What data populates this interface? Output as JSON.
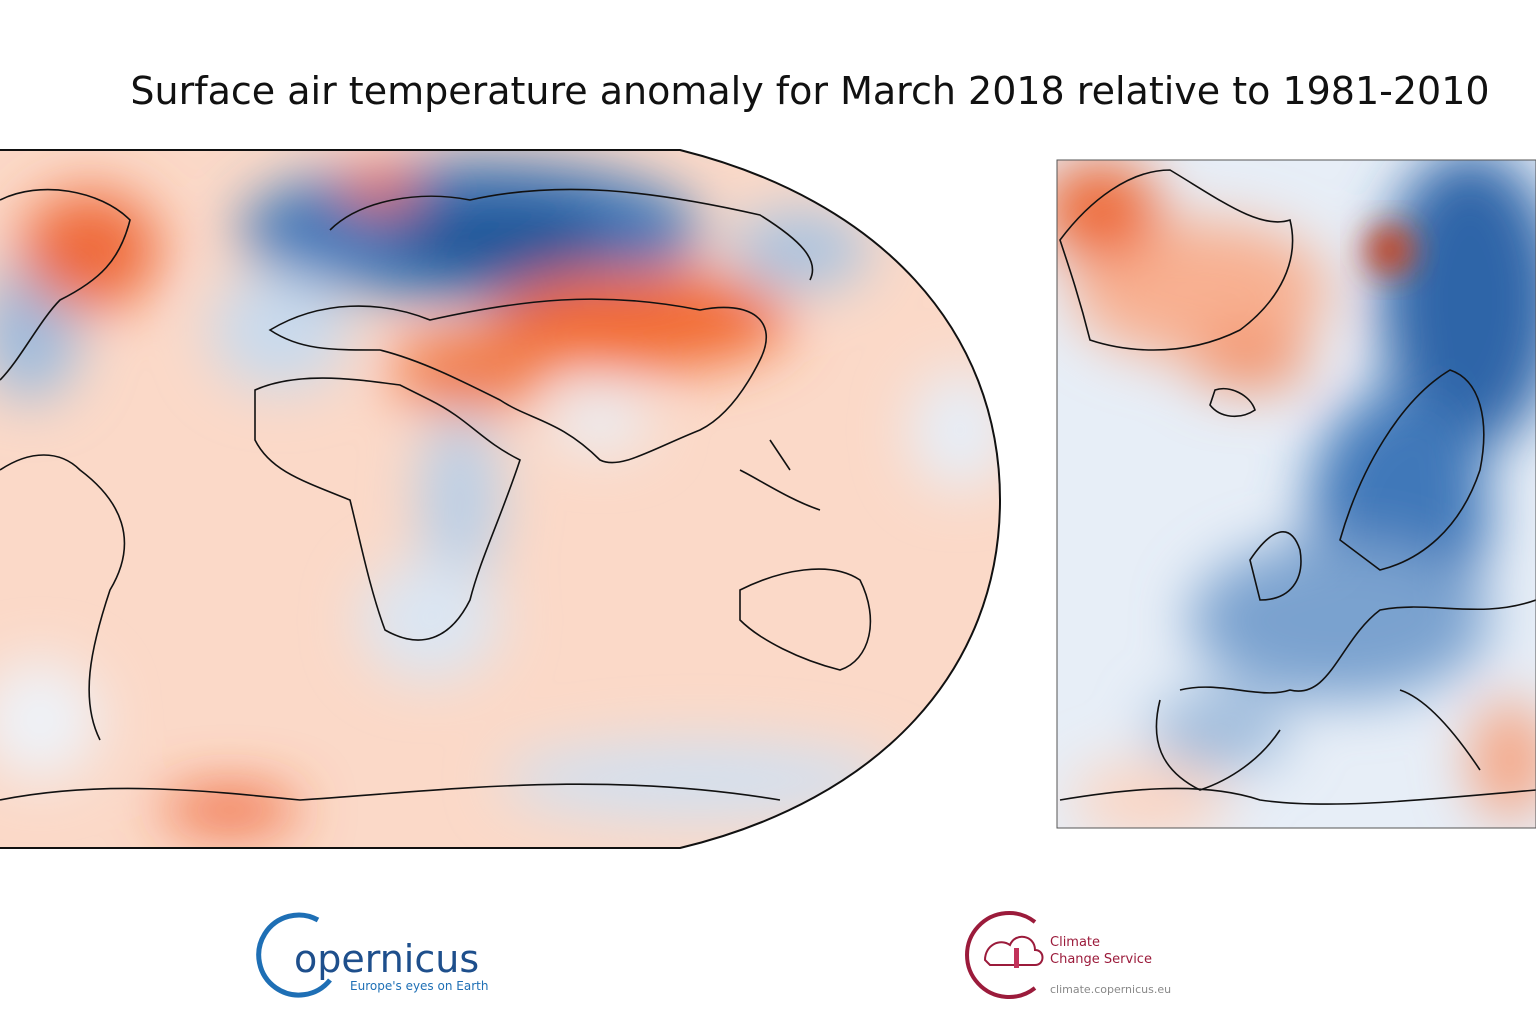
{
  "header": {
    "title": "Surface air temperature anomaly for March 2018 relative to 1981-2010"
  },
  "logos": {
    "copernicus": {
      "name": "opernicus",
      "tagline": "Europe's eyes on Earth"
    },
    "c3s": {
      "line1": "Climate",
      "line2": "Change Service",
      "url": "climate.copernicus.eu"
    }
  }
}
